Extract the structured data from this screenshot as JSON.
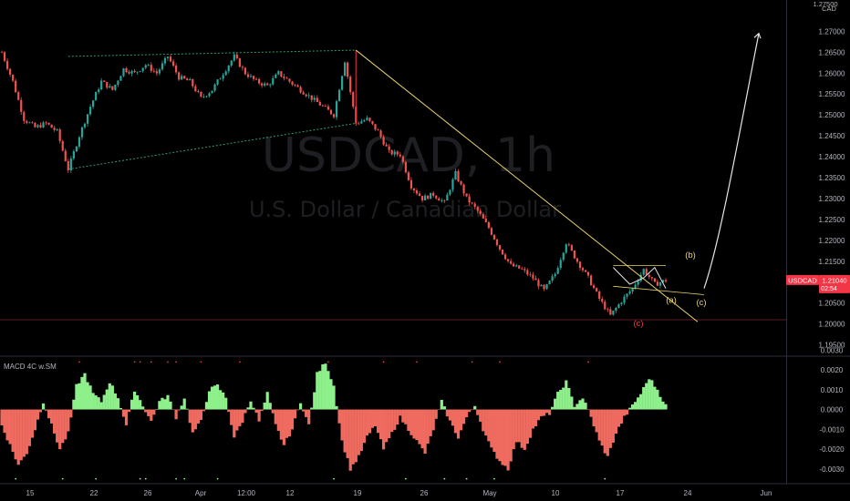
{
  "chart_data": [
    {
      "type": "candlestick",
      "symbol_watermark": "USDCAD, 1h",
      "description_watermark": "U.S. Dollar / Canadian Dollar",
      "currency": "CAD",
      "y_axis_top_label": "1.27500",
      "yticks": [
        "1.27000",
        "1.26500",
        "1.26000",
        "1.25500",
        "1.25000",
        "1.24500",
        "1.24000",
        "1.23500",
        "1.23000",
        "1.22500",
        "1.22000",
        "1.21500",
        "1.21000",
        "1.20500",
        "1.20000",
        "1.19500"
      ],
      "ylim": [
        1.1925,
        1.2775
      ],
      "xtick_labels": [
        "15",
        "22",
        "26",
        "Apr",
        "12:00",
        "12",
        "19",
        "26",
        "May",
        "10",
        "17",
        "24",
        "Jun"
      ],
      "price_tag": {
        "symbol": "USDCAD",
        "price": "1.21040",
        "countdown": "02:54",
        "color": "#f23645"
      },
      "close_path": [
        [
          0,
          1.265
        ],
        [
          4,
          1.258
        ],
        [
          8,
          1.249
        ],
        [
          12,
          1.247
        ],
        [
          16,
          1.248
        ],
        [
          20,
          1.246
        ],
        [
          24,
          1.237
        ],
        [
          28,
          1.245
        ],
        [
          32,
          1.252
        ],
        [
          36,
          1.258
        ],
        [
          40,
          1.256
        ],
        [
          44,
          1.261
        ],
        [
          48,
          1.26
        ],
        [
          52,
          1.262
        ],
        [
          56,
          1.26
        ],
        [
          60,
          1.264
        ],
        [
          64,
          1.259
        ],
        [
          68,
          1.258
        ],
        [
          72,
          1.254
        ],
        [
          76,
          1.256
        ],
        [
          80,
          1.26
        ],
        [
          84,
          1.264
        ],
        [
          88,
          1.26
        ],
        [
          92,
          1.258
        ],
        [
          96,
          1.257
        ],
        [
          100,
          1.26
        ],
        [
          104,
          1.258
        ],
        [
          108,
          1.256
        ],
        [
          112,
          1.254
        ],
        [
          116,
          1.252
        ],
        [
          120,
          1.25
        ],
        [
          124,
          1.263
        ],
        [
          128,
          1.248
        ],
        [
          132,
          1.249
        ],
        [
          136,
          1.246
        ],
        [
          140,
          1.241
        ],
        [
          144,
          1.2405
        ],
        [
          148,
          1.233
        ],
        [
          152,
          1.23
        ],
        [
          156,
          1.231
        ],
        [
          160,
          1.229
        ],
        [
          164,
          1.236
        ],
        [
          168,
          1.23
        ],
        [
          172,
          1.227
        ],
        [
          176,
          1.223
        ],
        [
          180,
          1.218
        ],
        [
          184,
          1.214
        ],
        [
          188,
          1.213
        ],
        [
          192,
          1.211
        ],
        [
          196,
          1.208
        ],
        [
          200,
          1.212
        ],
        [
          204,
          1.2195
        ],
        [
          208,
          1.215
        ],
        [
          212,
          1.211
        ],
        [
          216,
          1.206
        ],
        [
          220,
          1.202
        ],
        [
          224,
          1.2055
        ],
        [
          228,
          1.2085
        ],
        [
          232,
          1.213
        ],
        [
          236,
          1.2095
        ],
        [
          240,
          1.2104
        ]
      ],
      "annotations": {
        "wave_labels": [
          {
            "text": "(b)",
            "color": "#e8d16b"
          },
          {
            "text": "(a)",
            "color": "#e8d16b"
          },
          {
            "text": "(c)",
            "color": "#e8d16b"
          },
          {
            "text": "(c)",
            "color": "#f23645"
          }
        ],
        "horizontal_level": 1.201
      }
    },
    {
      "type": "histogram",
      "title": "MACD 4C w.SM",
      "yticks": [
        "0.0030",
        "0.0020",
        "0.0010",
        "0.0000",
        "-0.0010",
        "-0.0020",
        "-0.0030"
      ],
      "ylim": [
        -0.0037,
        0.0026
      ],
      "colors": {
        "positive": "#8ef08b",
        "negative": "#ef6b5f"
      },
      "values_path": [
        [
          0,
          -0.0008
        ],
        [
          3,
          -0.0018
        ],
        [
          6,
          -0.0028
        ],
        [
          9,
          -0.0022
        ],
        [
          12,
          -0.001
        ],
        [
          15,
          0.0004
        ],
        [
          18,
          -0.0008
        ],
        [
          21,
          -0.002
        ],
        [
          24,
          -0.0012
        ],
        [
          27,
          0.0012
        ],
        [
          30,
          0.0018
        ],
        [
          33,
          0.0008
        ],
        [
          36,
          0.0004
        ],
        [
          39,
          0.0014
        ],
        [
          42,
          0.0006
        ],
        [
          45,
          -0.0008
        ],
        [
          48,
          0.001
        ],
        [
          51,
          0.0002
        ],
        [
          54,
          -0.0006
        ],
        [
          57,
          0.0004
        ],
        [
          60,
          0.0007
        ],
        [
          63,
          -0.0004
        ],
        [
          66,
          0.0006
        ],
        [
          69,
          -0.0012
        ],
        [
          72,
          -0.0006
        ],
        [
          75,
          0.001
        ],
        [
          78,
          0.0012
        ],
        [
          81,
          0.0006
        ],
        [
          84,
          -0.0014
        ],
        [
          87,
          -0.0006
        ],
        [
          90,
          0.0005
        ],
        [
          93,
          -0.0006
        ],
        [
          96,
          0.0008
        ],
        [
          99,
          -0.0008
        ],
        [
          102,
          -0.0018
        ],
        [
          105,
          -0.001
        ],
        [
          108,
          0.0004
        ],
        [
          111,
          -0.0008
        ],
        [
          114,
          0.0018
        ],
        [
          117,
          0.0024
        ],
        [
          120,
          0.0012
        ],
        [
          123,
          -0.0016
        ],
        [
          126,
          -0.003
        ],
        [
          129,
          -0.0024
        ],
        [
          132,
          -0.0014
        ],
        [
          135,
          -0.0008
        ],
        [
          138,
          -0.002
        ],
        [
          141,
          -0.0012
        ],
        [
          144,
          -0.0004
        ],
        [
          147,
          -0.001
        ],
        [
          150,
          -0.0016
        ],
        [
          153,
          -0.0022
        ],
        [
          156,
          -0.001
        ],
        [
          159,
          0.0004
        ],
        [
          162,
          -0.0006
        ],
        [
          165,
          -0.0014
        ],
        [
          168,
          -0.0004
        ],
        [
          171,
          0.0002
        ],
        [
          174,
          -0.001
        ],
        [
          177,
          -0.002
        ],
        [
          180,
          -0.0026
        ],
        [
          183,
          -0.003
        ],
        [
          186,
          -0.0016
        ],
        [
          189,
          -0.002
        ],
        [
          192,
          -0.001
        ],
        [
          195,
          -0.0004
        ],
        [
          198,
          -0.0002
        ],
        [
          201,
          0.0008
        ],
        [
          204,
          0.0014
        ],
        [
          207,
          0.0002
        ],
        [
          210,
          0.0006
        ],
        [
          213,
          -0.0004
        ],
        [
          216,
          -0.0016
        ],
        [
          219,
          -0.0024
        ],
        [
          222,
          -0.0012
        ],
        [
          225,
          -0.0004
        ],
        [
          228,
          0.0002
        ],
        [
          231,
          0.0008
        ],
        [
          234,
          0.0016
        ],
        [
          237,
          0.001
        ],
        [
          240,
          0.0002
        ]
      ]
    }
  ]
}
